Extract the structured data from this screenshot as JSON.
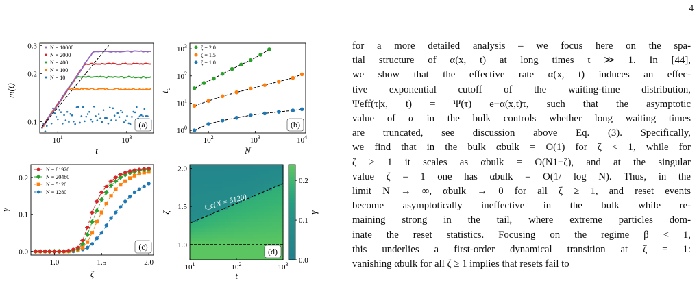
{
  "page_number": "4",
  "panels": [
    {
      "id": "a",
      "panel_label": "(a)",
      "ylabel": "m(t)",
      "xlabel": "t",
      "xscale": "log",
      "yscale": "log",
      "xlim": [
        3,
        6000
      ],
      "ylim": [
        0.085,
        0.31
      ],
      "xticks": [
        {
          "v": 10,
          "label": "10",
          "exp": "1"
        },
        {
          "v": 1000,
          "label": "10",
          "exp": "3"
        }
      ],
      "yticks": [
        {
          "v": 0.1,
          "label": "0.1"
        },
        {
          "v": 0.2,
          "label": "0.2"
        },
        {
          "v": 0.3,
          "label": "0.3"
        }
      ],
      "legend": [
        "N = 10000",
        "N = 2000",
        "N = 400",
        "N = 100",
        "N = 10"
      ],
      "series": [
        {
          "name": "N = 10000",
          "color": "#9467bd",
          "plateau": 0.275,
          "tsat": 800
        },
        {
          "name": "N = 2000",
          "color": "#d62728",
          "plateau": 0.23,
          "tsat": 400
        },
        {
          "name": "N = 400",
          "color": "#2ca02c",
          "plateau": 0.19,
          "tsat": 200
        },
        {
          "name": "N = 100",
          "color": "#ff7f0e",
          "plateau": 0.16,
          "tsat": 90
        },
        {
          "name": "N = 10",
          "color": "#1f77b4",
          "plateau": 0.11,
          "tsat": 12
        }
      ]
    },
    {
      "id": "b",
      "panel_label": "(b)",
      "ylabel": "t_c",
      "xlabel": "N",
      "xscale": "log",
      "yscale": "log",
      "xlim": [
        40,
        12000
      ],
      "ylim": [
        0.8,
        1600
      ],
      "xticks": [
        {
          "v": 100,
          "label": "10",
          "exp": "2"
        },
        {
          "v": 1000,
          "label": "10",
          "exp": "3"
        },
        {
          "v": 10000,
          "label": "10",
          "exp": "4"
        }
      ],
      "yticks": [
        {
          "v": 1,
          "label": "10",
          "exp": "0"
        },
        {
          "v": 10,
          "label": "10",
          "exp": "1"
        },
        {
          "v": 100,
          "label": "10",
          "exp": "2"
        },
        {
          "v": 1000,
          "label": "10",
          "exp": "3"
        }
      ],
      "legend": [
        "ζ = 2.0",
        "ζ = 1.5",
        "ζ = 1.0"
      ],
      "series": [
        {
          "name": "ζ = 2.0",
          "color": "#2ca02c",
          "x": [
            50,
            80,
            130,
            200,
            320,
            500,
            800,
            1300,
            2000
          ],
          "y": [
            35,
            55,
            80,
            120,
            180,
            260,
            380,
            600,
            950
          ]
        },
        {
          "name": "ζ = 1.5",
          "color": "#ff7f0e",
          "x": [
            50,
            100,
            200,
            400,
            800,
            1600,
            3200,
            6400,
            10000
          ],
          "y": [
            8,
            12,
            18,
            25,
            34,
            46,
            62,
            85,
            115
          ]
        },
        {
          "name": "ζ = 1.0",
          "color": "#1f77b4",
          "x": [
            50,
            100,
            200,
            400,
            800,
            1600,
            3200,
            6400,
            10000
          ],
          "y": [
            1.0,
            1.7,
            2.3,
            2.9,
            3.6,
            4.2,
            4.8,
            5.4,
            6.0
          ]
        }
      ]
    },
    {
      "id": "c",
      "panel_label": "(c)",
      "ylabel": "γ",
      "xlabel": "ζ",
      "xlim": [
        0.75,
        2.05
      ],
      "ylim": [
        -0.01,
        0.235
      ],
      "xticks": [
        {
          "v": 1.0,
          "label": "1.0"
        },
        {
          "v": 1.5,
          "label": "1.5"
        },
        {
          "v": 2.0,
          "label": "2.0"
        }
      ],
      "yticks": [
        {
          "v": 0.0,
          "label": "0.0"
        },
        {
          "v": 0.1,
          "label": "0.1"
        },
        {
          "v": 0.2,
          "label": "0.2"
        }
      ],
      "legend": [
        "N = 81920",
        "N = 20480",
        "N = 5120",
        "N = 1280"
      ],
      "series": [
        {
          "name": "N = 81920",
          "color": "#d62728",
          "marker": "plus",
          "x": [
            0.8,
            0.85,
            0.9,
            0.95,
            1.0,
            1.05,
            1.1,
            1.15,
            1.2,
            1.25,
            1.3,
            1.35,
            1.4,
            1.45,
            1.5,
            1.55,
            1.6,
            1.65,
            1.7,
            1.75,
            1.8,
            1.85,
            1.9,
            1.95,
            2.0
          ],
          "y": [
            0.0,
            0.0,
            0.0,
            0.0,
            0.0,
            0.0,
            0.0,
            0.002,
            0.005,
            0.01,
            0.03,
            0.065,
            0.105,
            0.135,
            0.16,
            0.175,
            0.19,
            0.2,
            0.208,
            0.213,
            0.217,
            0.22,
            0.222,
            0.224,
            0.225
          ]
        },
        {
          "name": "N = 20480",
          "color": "#2ca02c",
          "marker": "diamond",
          "x": [
            0.8,
            0.85,
            0.9,
            0.95,
            1.0,
            1.05,
            1.1,
            1.15,
            1.2,
            1.25,
            1.3,
            1.35,
            1.4,
            1.45,
            1.5,
            1.55,
            1.6,
            1.65,
            1.7,
            1.75,
            1.8,
            1.85,
            1.9,
            1.95,
            2.0
          ],
          "y": [
            0.0,
            0.0,
            0.0,
            0.0,
            0.0,
            0.0,
            0.0,
            0.001,
            0.003,
            0.007,
            0.02,
            0.045,
            0.08,
            0.11,
            0.14,
            0.16,
            0.178,
            0.19,
            0.2,
            0.207,
            0.212,
            0.216,
            0.219,
            0.221,
            0.222
          ]
        },
        {
          "name": "N = 5120",
          "color": "#ff7f0e",
          "marker": "square",
          "x": [
            0.8,
            0.85,
            0.9,
            0.95,
            1.0,
            1.05,
            1.1,
            1.15,
            1.2,
            1.25,
            1.3,
            1.35,
            1.4,
            1.45,
            1.5,
            1.55,
            1.6,
            1.65,
            1.7,
            1.75,
            1.8,
            1.85,
            1.9,
            1.95,
            2.0
          ],
          "y": [
            0.0,
            0.0,
            0.0,
            0.0,
            0.0,
            0.0,
            0.0,
            0.0,
            0.002,
            0.004,
            0.01,
            0.025,
            0.05,
            0.08,
            0.105,
            0.13,
            0.15,
            0.168,
            0.18,
            0.19,
            0.198,
            0.205,
            0.21,
            0.213,
            0.215
          ]
        },
        {
          "name": "N = 1280",
          "color": "#1f77b4",
          "marker": "circle",
          "x": [
            0.8,
            0.85,
            0.9,
            0.95,
            1.0,
            1.05,
            1.1,
            1.15,
            1.2,
            1.25,
            1.3,
            1.35,
            1.4,
            1.45,
            1.5,
            1.55,
            1.6,
            1.65,
            1.7,
            1.75,
            1.8,
            1.85,
            1.9,
            1.95,
            2.0
          ],
          "y": [
            0.0,
            0.0,
            0.0,
            0.0,
            0.0,
            0.0,
            0.0,
            0.0,
            0.0,
            0.002,
            0.005,
            0.01,
            0.02,
            0.035,
            0.05,
            0.07,
            0.09,
            0.105,
            0.12,
            0.135,
            0.148,
            0.16,
            0.168,
            0.175,
            0.183
          ]
        }
      ]
    },
    {
      "id": "d",
      "panel_label": "(d)",
      "ylabel": "ζ",
      "xlabel": "t",
      "colorbar_label": "γ",
      "xscale": "log",
      "xlim": [
        10,
        1000
      ],
      "ylim": [
        0.8,
        2.05
      ],
      "xticks": [
        {
          "v": 10,
          "label": "10",
          "exp": "1"
        },
        {
          "v": 100,
          "label": "10",
          "exp": "2"
        },
        {
          "v": 1000,
          "label": "10",
          "exp": "3"
        }
      ],
      "yticks": [
        {
          "v": 1.0,
          "label": "1.0"
        },
        {
          "v": 1.5,
          "label": "1.5"
        },
        {
          "v": 2.0,
          "label": "2.0"
        }
      ],
      "colorbar_ticks": [
        {
          "v": 0.0,
          "label": "0.0"
        },
        {
          "v": 0.1,
          "label": "0.1"
        },
        {
          "v": 0.2,
          "label": "0.2"
        }
      ],
      "colorbar_range": [
        0.0,
        0.24
      ],
      "annotation": "t_c(N = 5120)",
      "reference_line_zeta": 1.0,
      "curve": {
        "x": [
          10,
          1000
        ],
        "y": [
          1.28,
          1.8
        ]
      }
    }
  ],
  "body_lines": [
    "for a more detailed analysis – we focus here on the spa-",
    "tial structure of α(x, t) at long times t ≫ 1.  In [44],",
    "we show that the effective rate α(x, t) induces an effec-",
    "tive exponential cutoff of the waiting-time distribution,",
    "Ψeff(τ|x, t) = Ψ(τ) e−α(x,t)τ, such that the asymptotic",
    "value of α in the bulk controls whether long waiting times",
    "are truncated, see discussion above Eq. (3). Specifically,",
    "we find that in the bulk αbulk = O(1) for ζ < 1, while for",
    "ζ > 1 it scales as αbulk = O(N1−ζ), and at the singular",
    "value ζ = 1 one has αbulk = O(1/ log N).  Thus, in the",
    "limit N → ∞, αbulk → 0 for all ζ ≥ 1, and reset events",
    "become asymptotically ineffective in the bulk while re-",
    "maining strong in the tail, where extreme particles dom-",
    "inate the reset statistics. Focusing on the regime β < 1,",
    "this underlies a first-order dynamical transition at ζ = 1:",
    "vanishing αbulk for all ζ ≥ 1 implies that resets fail to"
  ]
}
